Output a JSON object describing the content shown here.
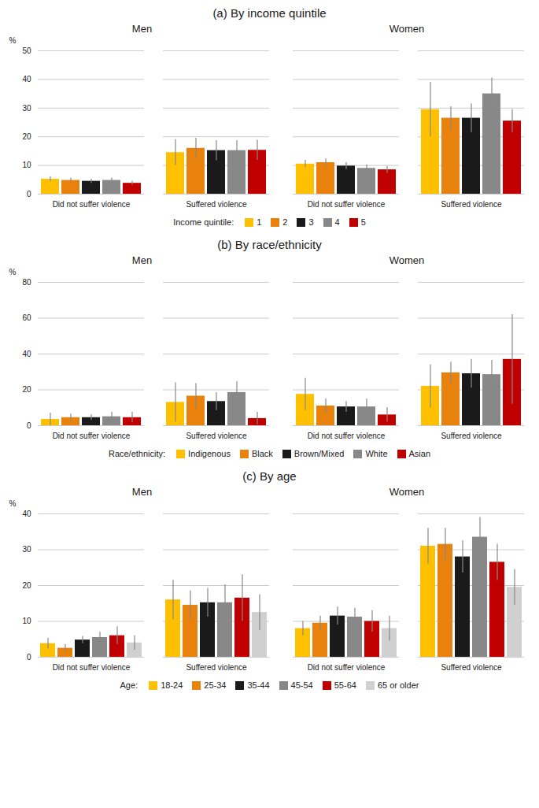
{
  "chart_data": [
    {
      "type": "bar",
      "title": "(a) By income quintile",
      "subtitle": "Men",
      "ylabel": "%",
      "categories": [
        "Did not suffer violence",
        "Suffered violence"
      ],
      "series": [
        {
          "name": "1",
          "color": "#FFC000",
          "values": [
            5.2,
            14.5
          ],
          "errors": [
            0.9,
            4.5
          ]
        },
        {
          "name": "2",
          "color": "#E8820C",
          "values": [
            4.8,
            16.0
          ],
          "errors": [
            0.8,
            3.5
          ]
        },
        {
          "name": "3",
          "color": "#1A1A1A",
          "values": [
            4.5,
            15.2
          ],
          "errors": [
            0.7,
            3.5
          ]
        },
        {
          "name": "4",
          "color": "#888888",
          "values": [
            4.8,
            15.2
          ],
          "errors": [
            0.8,
            3.5
          ]
        },
        {
          "name": "5",
          "color": "#C00000",
          "values": [
            3.8,
            15.3
          ],
          "errors": [
            0.7,
            3.5
          ]
        }
      ],
      "ylim": [
        0,
        50
      ],
      "yticks": [
        0,
        10,
        20,
        30,
        40,
        50
      ],
      "grid": true
    },
    {
      "type": "bar",
      "title": "(a) By income quintile",
      "subtitle": "Women",
      "legend_title": "Income quintile:",
      "categories": [
        "Did not suffer violence",
        "Suffered violence"
      ],
      "series": [
        {
          "name": "1",
          "color": "#FFC000",
          "values": [
            10.5,
            29.5
          ],
          "errors": [
            1.3,
            9.5
          ]
        },
        {
          "name": "2",
          "color": "#E8820C",
          "values": [
            11.0,
            26.5
          ],
          "errors": [
            1.3,
            4.0
          ]
        },
        {
          "name": "3",
          "color": "#1A1A1A",
          "values": [
            9.8,
            26.5
          ],
          "errors": [
            1.2,
            5.0
          ]
        },
        {
          "name": "4",
          "color": "#888888",
          "values": [
            9.0,
            35.0
          ],
          "errors": [
            1.2,
            5.5
          ]
        },
        {
          "name": "5",
          "color": "#C00000",
          "values": [
            8.5,
            25.5
          ],
          "errors": [
            1.2,
            4.0
          ]
        }
      ],
      "ylim": [
        0,
        50
      ],
      "yticks": [
        0,
        10,
        20,
        30,
        40,
        50
      ],
      "grid": true,
      "tick_labels": "x",
      "legend": "bottom"
    },
    {
      "type": "bar",
      "title": "(b) By race/ethnicity",
      "subtitle": "Men",
      "ylabel": "%",
      "categories": [
        "Did not suffer violence",
        "Suffered violence"
      ],
      "series": [
        {
          "name": "Indigenous",
          "color": "#FFC000",
          "values": [
            3.5,
            13.0
          ],
          "errors": [
            3.5,
            11.0
          ]
        },
        {
          "name": "Black",
          "color": "#E8820C",
          "values": [
            4.5,
            16.5
          ],
          "errors": [
            2.0,
            7.0
          ]
        },
        {
          "name": "Brown/Mixed",
          "color": "#1A1A1A",
          "values": [
            4.5,
            13.5
          ],
          "errors": [
            1.5,
            5.0
          ]
        },
        {
          "name": "White",
          "color": "#888888",
          "values": [
            5.0,
            18.5
          ],
          "errors": [
            2.5,
            6.0
          ]
        },
        {
          "name": "Asian",
          "color": "#C00000",
          "values": [
            4.5,
            4.0
          ],
          "errors": [
            3.0,
            3.5
          ]
        }
      ],
      "ylim": [
        0,
        80
      ],
      "yticks": [
        0,
        20,
        40,
        60,
        80
      ],
      "grid": true
    },
    {
      "type": "bar",
      "title": "(b) By race/ethnicity",
      "subtitle": "Women",
      "legend_title": "Race/ethnicity:",
      "categories": [
        "Did not suffer violence",
        "Suffered violence"
      ],
      "series": [
        {
          "name": "Indigenous",
          "color": "#FFC000",
          "values": [
            17.5,
            22.0
          ],
          "errors": [
            9.0,
            12.0
          ]
        },
        {
          "name": "Black",
          "color": "#E8820C",
          "values": [
            11.0,
            29.5
          ],
          "errors": [
            4.0,
            6.0
          ]
        },
        {
          "name": "Brown/Mixed",
          "color": "#1A1A1A",
          "values": [
            10.5,
            29.0
          ],
          "errors": [
            3.0,
            8.0
          ]
        },
        {
          "name": "White",
          "color": "#888888",
          "values": [
            10.5,
            28.5
          ],
          "errors": [
            4.5,
            8.0
          ]
        },
        {
          "name": "Asian",
          "color": "#C00000",
          "values": [
            6.0,
            37.0
          ],
          "errors": [
            4.0,
            25.0
          ]
        }
      ],
      "ylim": [
        0,
        80
      ],
      "yticks": [
        0,
        20,
        40,
        60,
        80
      ],
      "grid": true,
      "tick_labels": "x",
      "legend": "bottom"
    },
    {
      "type": "bar",
      "title": "(c) By age",
      "subtitle": "Men",
      "ylabel": "%",
      "categories": [
        "Did not suffer violence",
        "Suffered violence"
      ],
      "series": [
        {
          "name": "18-24",
          "color": "#FFC000",
          "values": [
            3.8,
            16.0
          ],
          "errors": [
            1.5,
            5.5
          ]
        },
        {
          "name": "25-34",
          "color": "#E8820C",
          "values": [
            2.5,
            14.5
          ],
          "errors": [
            1.0,
            4.0
          ]
        },
        {
          "name": "35-44",
          "color": "#1A1A1A",
          "values": [
            4.8,
            15.2
          ],
          "errors": [
            1.0,
            4.0
          ]
        },
        {
          "name": "45-54",
          "color": "#888888",
          "values": [
            5.5,
            15.2
          ],
          "errors": [
            1.5,
            5.0
          ]
        },
        {
          "name": "55-64",
          "color": "#C00000",
          "values": [
            6.0,
            16.5
          ],
          "errors": [
            2.5,
            6.5
          ]
        },
        {
          "name": "65 or older",
          "color": "#D0D0D0",
          "values": [
            4.0,
            12.5
          ],
          "errors": [
            2.0,
            5.0
          ]
        }
      ],
      "ylim": [
        0,
        40
      ],
      "yticks": [
        0,
        10,
        20,
        30,
        40
      ],
      "grid": true
    },
    {
      "type": "bar",
      "title": "(c) By age",
      "subtitle": "Women",
      "legend_title": "Age:",
      "categories": [
        "Did not suffer violence",
        "Suffered violence"
      ],
      "series": [
        {
          "name": "18-24",
          "color": "#FFC000",
          "values": [
            8.0,
            31.0
          ],
          "errors": [
            2.0,
            5.0
          ]
        },
        {
          "name": "25-34",
          "color": "#E8820C",
          "values": [
            9.5,
            31.5
          ],
          "errors": [
            2.0,
            4.5
          ]
        },
        {
          "name": "35-44",
          "color": "#1A1A1A",
          "values": [
            11.5,
            28.0
          ],
          "errors": [
            2.5,
            4.5
          ]
        },
        {
          "name": "45-54",
          "color": "#888888",
          "values": [
            11.2,
            33.5
          ],
          "errors": [
            2.5,
            5.5
          ]
        },
        {
          "name": "55-64",
          "color": "#C00000",
          "values": [
            10.0,
            26.5
          ],
          "errors": [
            3.0,
            5.0
          ]
        },
        {
          "name": "65 or older",
          "color": "#D0D0D0",
          "values": [
            8.0,
            19.5
          ],
          "errors": [
            3.5,
            5.0
          ]
        }
      ],
      "ylim": [
        0,
        40
      ],
      "yticks": [
        0,
        10,
        20,
        30,
        40
      ],
      "grid": true,
      "tick_labels": "x",
      "legend": "bottom"
    }
  ]
}
